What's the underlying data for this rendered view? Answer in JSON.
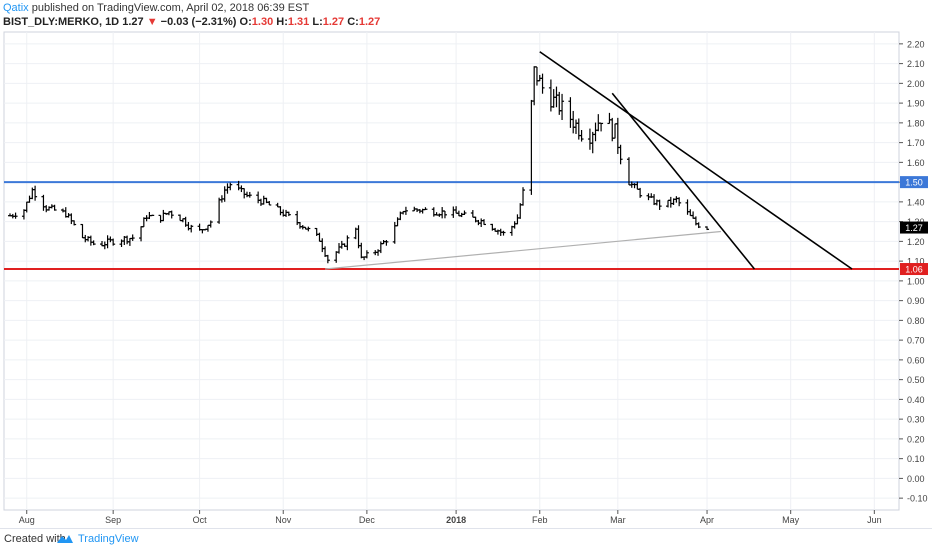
{
  "header": {
    "author": "Qatix",
    "published_text": " published on TradingView.com, April 02, 2018 06:39 EST",
    "symbol": "BIST_DLY:MERKO, 1D",
    "last": "1.27",
    "change": "−0.03 (−2.31%)",
    "o_label": "O:",
    "o_value": "1.30",
    "h_label": "H:",
    "h_value": "1.31",
    "l_label": "L:",
    "l_value": "1.27",
    "c_label": "C:",
    "c_value": "1.27"
  },
  "footer": {
    "created_with": "Created with",
    "brand": "TradingView"
  },
  "colors": {
    "up_red": "#e53935",
    "blue_line": "#3c78d8",
    "red_line": "#e02020",
    "bars": "#000000",
    "grid": "#eef0f4"
  },
  "chart_data": {
    "type": "ohlc",
    "title": "BIST_DLY:MERKO, 1D",
    "y_ticks": [
      "2.20",
      "2.10",
      "2.00",
      "1.90",
      "1.80",
      "1.70",
      "1.60",
      "1.50",
      "1.40",
      "1.30",
      "1.20",
      "1.10",
      "1.00",
      "0.90",
      "0.80",
      "0.70",
      "0.60",
      "0.50",
      "0.40",
      "0.30",
      "0.20",
      "0.10",
      "0.00",
      "-0.10"
    ],
    "ylim": [
      -0.16,
      2.26
    ],
    "x_labels": [
      {
        "label": "Aug",
        "date": "2017-08-01"
      },
      {
        "label": "Sep",
        "date": "2017-09-01"
      },
      {
        "label": "Oct",
        "date": "2017-10-02"
      },
      {
        "label": "Nov",
        "date": "2017-11-01"
      },
      {
        "label": "Dec",
        "date": "2017-12-01"
      },
      {
        "label": "2018",
        "date": "2018-01-02"
      },
      {
        "label": "Feb",
        "date": "2018-02-01"
      },
      {
        "label": "Mar",
        "date": "2018-03-01"
      },
      {
        "label": "Apr",
        "date": "2018-04-02"
      },
      {
        "label": "May",
        "date": "2018-05-02"
      },
      {
        "label": "Jun",
        "date": "2018-06-01"
      }
    ],
    "price_tag_labels": {
      "last": "1.27",
      "blue": "1.50",
      "red": "1.06"
    },
    "horizontal_lines": [
      {
        "name": "resistance",
        "value": 1.5,
        "color": "#3c78d8"
      },
      {
        "name": "support",
        "value": 1.06,
        "color": "#e02020"
      }
    ],
    "trend_lines": [
      {
        "name": "downtrend-1",
        "from": {
          "date": "2018-02-01",
          "value": 2.16
        },
        "to": {
          "date": "2018-05-24",
          "value": 1.06
        },
        "color": "#000000"
      },
      {
        "name": "downtrend-2",
        "from": {
          "date": "2018-02-27",
          "value": 1.95
        },
        "to": {
          "date": "2018-04-19",
          "value": 1.06
        },
        "color": "#000000"
      },
      {
        "name": "rising-support",
        "from": {
          "date": "2017-11-16",
          "value": 1.06
        },
        "to": {
          "date": "2018-04-07",
          "value": 1.25
        },
        "color": "#b0b0b0"
      }
    ],
    "series": [
      {
        "anchors": [
          {
            "date": "2017-07-26",
            "value": 1.33
          },
          {
            "date": "2017-07-31",
            "value": 1.36
          },
          {
            "date": "2017-08-03",
            "value": 1.46
          },
          {
            "date": "2017-08-08",
            "value": 1.37
          },
          {
            "date": "2017-08-15",
            "value": 1.34
          },
          {
            "date": "2017-08-21",
            "value": 1.22
          },
          {
            "date": "2017-08-26",
            "value": 1.18
          },
          {
            "date": "2017-09-03",
            "value": 1.21
          },
          {
            "date": "2017-09-09",
            "value": 1.22
          },
          {
            "date": "2017-09-13",
            "value": 1.33
          },
          {
            "date": "2017-09-17",
            "value": 1.31
          },
          {
            "date": "2017-09-21",
            "value": 1.35
          },
          {
            "date": "2017-09-26",
            "value": 1.31
          },
          {
            "date": "2017-10-01",
            "value": 1.24
          },
          {
            "date": "2017-10-06",
            "value": 1.3
          },
          {
            "date": "2017-10-11",
            "value": 1.46
          },
          {
            "date": "2017-10-13",
            "value": 1.49
          },
          {
            "date": "2017-10-19",
            "value": 1.43
          },
          {
            "date": "2017-10-25",
            "value": 1.4
          },
          {
            "date": "2017-10-31",
            "value": 1.35
          },
          {
            "date": "2017-11-08",
            "value": 1.28
          },
          {
            "date": "2017-11-14",
            "value": 1.21
          },
          {
            "date": "2017-11-17",
            "value": 1.11
          },
          {
            "date": "2017-11-22",
            "value": 1.17
          },
          {
            "date": "2017-11-27",
            "value": 1.27
          },
          {
            "date": "2017-11-29",
            "value": 1.11
          },
          {
            "date": "2017-12-04",
            "value": 1.15
          },
          {
            "date": "2017-12-10",
            "value": 1.24
          },
          {
            "date": "2017-12-14",
            "value": 1.36
          },
          {
            "date": "2017-12-20",
            "value": 1.36
          },
          {
            "date": "2018-01-02",
            "value": 1.34
          },
          {
            "date": "2018-01-12",
            "value": 1.3
          },
          {
            "date": "2018-01-20",
            "value": 1.23
          },
          {
            "date": "2018-01-24",
            "value": 1.32
          },
          {
            "date": "2018-01-26",
            "value": 1.45
          },
          {
            "date": "2018-01-28",
            "value": 1.72
          },
          {
            "date": "2018-01-30",
            "value": 2.06
          },
          {
            "date": "2018-02-03",
            "value": 1.95
          },
          {
            "date": "2018-02-10",
            "value": 1.86
          },
          {
            "date": "2018-02-18",
            "value": 1.72
          },
          {
            "date": "2018-02-23",
            "value": 1.83
          },
          {
            "date": "2018-02-28",
            "value": 1.75
          },
          {
            "date": "2018-03-05",
            "value": 1.5
          },
          {
            "date": "2018-03-10",
            "value": 1.43
          },
          {
            "date": "2018-03-17",
            "value": 1.38
          },
          {
            "date": "2018-03-22",
            "value": 1.41
          },
          {
            "date": "2018-03-29",
            "value": 1.29
          },
          {
            "date": "2018-04-02",
            "value": 1.27
          }
        ],
        "start": "2017-07-26",
        "end": "2018-04-02"
      }
    ]
  }
}
